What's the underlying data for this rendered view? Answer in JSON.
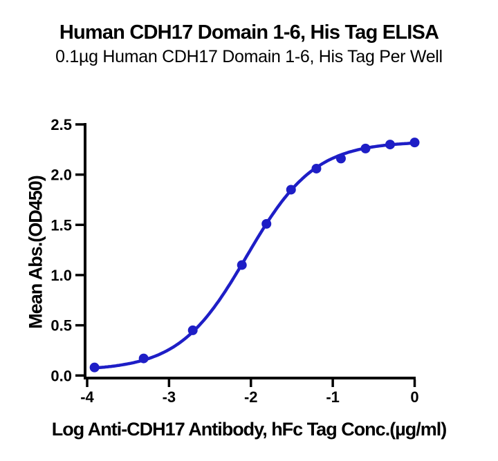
{
  "header": {
    "title": "Human CDH17 Domain 1-6, His Tag ELISA",
    "subtitle": "0.1µg Human CDH17 Domain 1-6, His Tag Per Well"
  },
  "chart_data": {
    "type": "line",
    "title": "Human CDH17 Domain 1-6, His Tag ELISA",
    "subtitle": "0.1µg Human CDH17 Domain 1-6, His Tag Per Well",
    "xlabel": "Log Anti-CDH17 Antibody, hFc Tag Conc.(µg/ml)",
    "ylabel": "Mean Abs.(OD450)",
    "xlim": [
      -4,
      0
    ],
    "ylim": [
      0,
      2.5
    ],
    "x_ticks": [
      -4,
      -3,
      -2,
      -1,
      0
    ],
    "x_tick_labels": [
      "-4",
      "-3",
      "-2",
      "-1",
      "0"
    ],
    "y_ticks": [
      0.0,
      0.5,
      1.0,
      1.5,
      2.0,
      2.5
    ],
    "y_tick_labels": [
      "0.0",
      "0.5",
      "1.0",
      "1.5",
      "2.0",
      "2.5"
    ],
    "grid": false,
    "legend": "none",
    "marker": "circle",
    "series": [
      {
        "name": "Anti-CDH17 Antibody, hFc Tag",
        "x": [
          -3.91,
          -3.31,
          -2.71,
          -2.11,
          -1.81,
          -1.51,
          -1.2,
          -0.9,
          -0.6,
          -0.3,
          0.0
        ],
        "y": [
          0.08,
          0.17,
          0.45,
          1.1,
          1.51,
          1.85,
          2.06,
          2.16,
          2.26,
          2.3,
          2.32
        ]
      }
    ],
    "curve_fit": {
      "model": "4PL",
      "bottom": 0.05,
      "top": 2.33,
      "log_ec50": -2.05,
      "hill": 1.05
    },
    "colors": {
      "curve": "#1e1ec6",
      "axis": "#000000",
      "text": "#000000"
    }
  }
}
